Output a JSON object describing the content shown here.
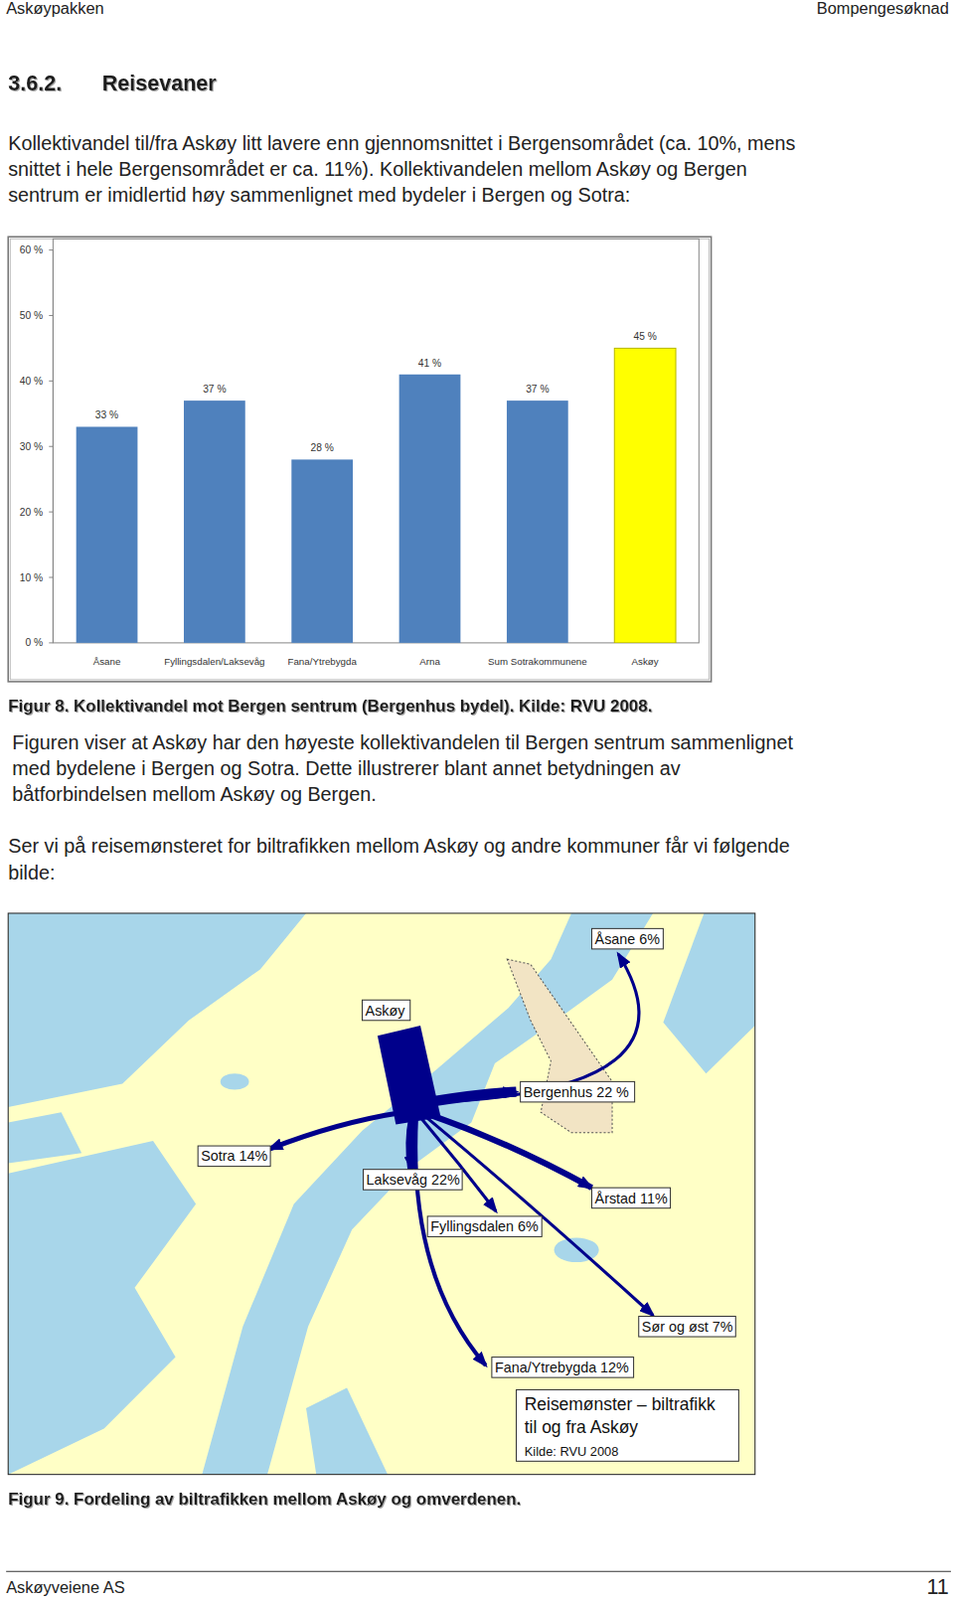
{
  "header": {
    "left": "Askøypakken",
    "right": "Bompengesøknad"
  },
  "section": {
    "number": "3.6.2.",
    "title": "Reisevaner"
  },
  "intro": [
    "Kollektivandel til/fra Askøy litt lavere enn gjennomsnittet i Bergensområdet (ca. 10%, mens",
    "snittet i hele Bergensområdet er ca. 11%). Kollektivandelen mellom Askøy og Bergen",
    "sentrum er imidlertid høy sammenlignet med bydeler i Bergen og Sotra:"
  ],
  "chart_data": {
    "type": "bar",
    "categories": [
      "Åsane",
      "Fyllingsdalen/Laksevåg",
      "Fana/Ytrebygda",
      "Arna",
      "Sum Sotrakommunene",
      "Askøy"
    ],
    "values": [
      33,
      37,
      28,
      41,
      37,
      45
    ],
    "value_labels": [
      "33 %",
      "37 %",
      "28 %",
      "41 %",
      "37 %",
      "45 %"
    ],
    "colors": [
      "#4f81bd",
      "#4f81bd",
      "#4f81bd",
      "#4f81bd",
      "#4f81bd",
      "#ffff00"
    ],
    "ylim": [
      0,
      60
    ],
    "yticks": [
      {
        "value": 0,
        "label": "0 %"
      },
      {
        "value": 10,
        "label": "10 %"
      },
      {
        "value": 20,
        "label": "20 %"
      },
      {
        "value": 30,
        "label": "30 %"
      },
      {
        "value": 40,
        "label": "40 %"
      },
      {
        "value": 50,
        "label": "50 %"
      },
      {
        "value": 60,
        "label": "60 %"
      }
    ],
    "grid": false,
    "data_labels": true
  },
  "figure8_caption": "Figur 8. Kollektivandel mot Bergen sentrum (Bergenhus bydel). Kilde: RVU 2008.",
  "figure8_text": [
    "Figuren viser at Askøy har den høyeste kollektivandelen til Bergen sentrum sammenlignet",
    "med bydelene i Bergen og Sotra. Dette illustrerer blant annet betydningen av",
    "båtforbindelsen mellom Askøy og Bergen."
  ],
  "map_intro": [
    "Ser vi på reisemønsteret for biltrafikken mellom Askøy og andre kommuner får vi følgende",
    "bilde:"
  ],
  "map": {
    "origin": "Askøy",
    "destinations": [
      "Åsane 6%",
      "Bergenhus 22 %",
      "Sotra 14%",
      "Laksevåg 22%",
      "Årstad 11%",
      "Fyllingsdalen 6%",
      "Sør og øst 7%",
      "Fana/Ytrebygda 12%"
    ],
    "legend_title": [
      "Reisemønster – biltrafikk",
      "til og fra Askøy"
    ],
    "legend_source": "Kilde: RVU 2008"
  },
  "figure9_caption": "Figur 9. Fordeling av biltrafikken mellom Askøy og omverdenen.",
  "footer": {
    "left": "Askøyveiene AS",
    "page": "11"
  }
}
